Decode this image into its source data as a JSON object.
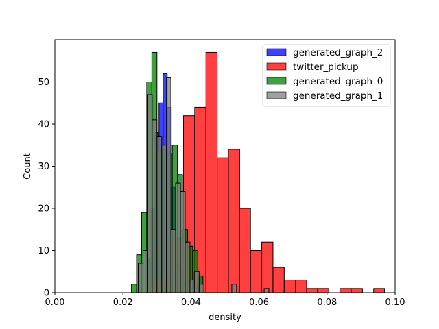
{
  "chart_data": {
    "type": "bar",
    "title": "",
    "xlabel": "density",
    "ylabel": "Count",
    "xlim": [
      0.0,
      0.1
    ],
    "ylim": [
      0,
      60
    ],
    "xticks": [
      0.0,
      0.02,
      0.04,
      0.06,
      0.08,
      0.1
    ],
    "xtick_labels": [
      "0.00",
      "0.02",
      "0.04",
      "0.06",
      "0.08",
      "0.10"
    ],
    "yticks": [
      0,
      10,
      20,
      30,
      40,
      50
    ],
    "ytick_labels": [
      "0",
      "10",
      "20",
      "30",
      "40",
      "50"
    ],
    "grid": false,
    "legend_position": "top-right",
    "series": [
      {
        "name": "generated_graph_2",
        "color": "#0000ff",
        "alpha": 0.75,
        "bins": [
          [
            0.027,
            0.0282,
            8
          ],
          [
            0.0282,
            0.0294,
            20
          ],
          [
            0.0294,
            0.0306,
            38
          ],
          [
            0.0306,
            0.0318,
            45
          ],
          [
            0.0318,
            0.033,
            52
          ],
          [
            0.033,
            0.0342,
            44
          ],
          [
            0.0342,
            0.0354,
            25
          ],
          [
            0.0354,
            0.0366,
            13
          ],
          [
            0.0366,
            0.0378,
            6
          ],
          [
            0.0378,
            0.039,
            3
          ]
        ]
      },
      {
        "name": "twitter_pickup",
        "color": "#ff0000",
        "alpha": 0.75,
        "bins": [
          [
            0.028,
            0.0313,
            3
          ],
          [
            0.0313,
            0.0346,
            4
          ],
          [
            0.0346,
            0.0378,
            13
          ],
          [
            0.0378,
            0.0411,
            42
          ],
          [
            0.0411,
            0.0444,
            44
          ],
          [
            0.0444,
            0.0477,
            57
          ],
          [
            0.0477,
            0.051,
            32
          ],
          [
            0.051,
            0.0543,
            34
          ],
          [
            0.0543,
            0.0575,
            20
          ],
          [
            0.0575,
            0.0608,
            10
          ],
          [
            0.0608,
            0.0641,
            12
          ],
          [
            0.0641,
            0.0674,
            6
          ],
          [
            0.0674,
            0.0707,
            3
          ],
          [
            0.0707,
            0.074,
            3
          ],
          [
            0.074,
            0.0772,
            1
          ],
          [
            0.0772,
            0.0805,
            1
          ],
          [
            0.0838,
            0.0871,
            1
          ],
          [
            0.0871,
            0.0904,
            1
          ],
          [
            0.0937,
            0.0969,
            1
          ]
        ]
      },
      {
        "name": "generated_graph_0",
        "color": "#008000",
        "alpha": 0.75,
        "bins": [
          [
            0.0225,
            0.024,
            2
          ],
          [
            0.024,
            0.0255,
            9
          ],
          [
            0.0255,
            0.027,
            19
          ],
          [
            0.027,
            0.0285,
            50
          ],
          [
            0.0285,
            0.03,
            57
          ],
          [
            0.03,
            0.0315,
            34
          ],
          [
            0.0315,
            0.033,
            34
          ],
          [
            0.033,
            0.0345,
            33
          ],
          [
            0.0345,
            0.036,
            35
          ],
          [
            0.036,
            0.0375,
            28
          ],
          [
            0.0375,
            0.039,
            15
          ],
          [
            0.039,
            0.0405,
            11
          ],
          [
            0.0405,
            0.042,
            10
          ],
          [
            0.042,
            0.0435,
            4
          ]
        ]
      },
      {
        "name": "generated_graph_1",
        "color": "#808080",
        "alpha": 0.75,
        "bins": [
          [
            0.0245,
            0.0259,
            7
          ],
          [
            0.0259,
            0.0273,
            10
          ],
          [
            0.0273,
            0.0286,
            47
          ],
          [
            0.0286,
            0.03,
            41
          ],
          [
            0.03,
            0.0314,
            37
          ],
          [
            0.0314,
            0.0328,
            35
          ],
          [
            0.0328,
            0.0341,
            51
          ],
          [
            0.0341,
            0.0355,
            15
          ],
          [
            0.0355,
            0.0369,
            26
          ],
          [
            0.0369,
            0.0383,
            24
          ],
          [
            0.0383,
            0.0397,
            12
          ],
          [
            0.0397,
            0.041,
            3
          ],
          [
            0.041,
            0.0424,
            5
          ],
          [
            0.0424,
            0.0438,
            2
          ],
          [
            0.052,
            0.0534,
            2
          ],
          [
            0.0615,
            0.0629,
            1
          ]
        ]
      }
    ]
  }
}
